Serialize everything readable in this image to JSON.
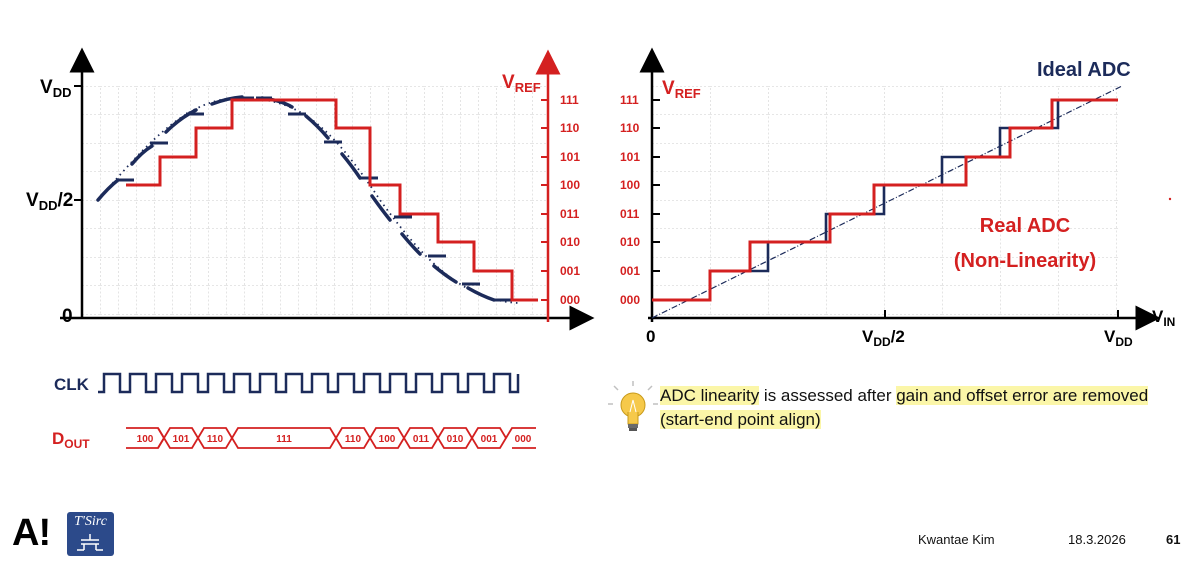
{
  "left_chart": {
    "y_axis_labels": [
      "V",
      "DD",
      "V",
      "DD",
      "/2",
      "0"
    ],
    "vref_label": [
      "V",
      "REF"
    ],
    "codes": [
      "111",
      "110",
      "101",
      "100",
      "011",
      "010",
      "001",
      "000"
    ]
  },
  "timing": {
    "clk_label": "CLK",
    "dout_label": [
      "D",
      "OUT"
    ],
    "dout_codes": [
      "100",
      "101",
      "110",
      "111",
      "110",
      "100",
      "011",
      "010",
      "001",
      "000"
    ]
  },
  "right_chart": {
    "title": "Ideal ADC",
    "real_label_line1": "Real ADC",
    "real_label_line2": "(Non-Linearity)",
    "vref_label": [
      "V",
      "REF"
    ],
    "codes": [
      "111",
      "110",
      "101",
      "100",
      "011",
      "010",
      "001",
      "000"
    ],
    "x_labels": [
      "0",
      "V",
      "DD",
      "/2",
      "V",
      "DD"
    ],
    "vin_label": [
      "V",
      "IN"
    ]
  },
  "note": {
    "part1": "ADC linearity",
    "part2": " is assessed after ",
    "part3": "gain and offset error are removed",
    "part4": "(start-end point align)"
  },
  "footer": {
    "author": "Kwantae Kim",
    "date": "18.3.2026",
    "page": "61",
    "logo_text": "A!",
    "logo_box_text": "T'Sirc"
  },
  "colors": {
    "navy": "#1c2b5a",
    "red": "#d42020",
    "grid": "#bdbdbd",
    "highlight": "#fbf6a8"
  }
}
